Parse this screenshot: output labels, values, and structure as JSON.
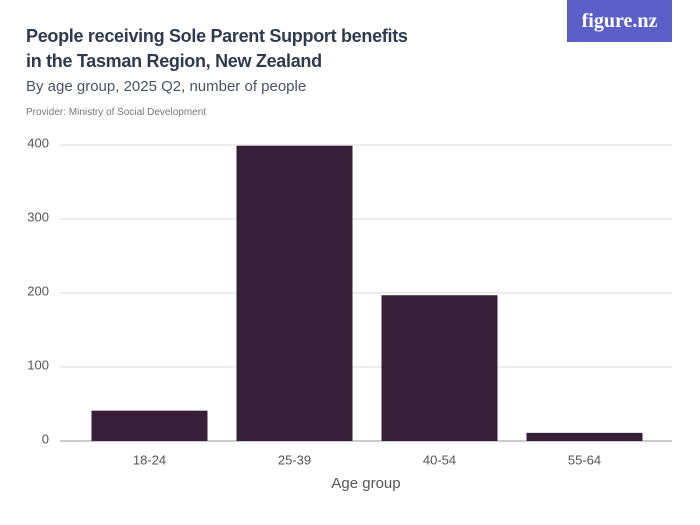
{
  "logo": "figure.nz",
  "chart_data": {
    "type": "bar",
    "title": "People receiving Sole Parent Support benefits in the Tasman Region, New Zealand",
    "subtitle": "By age group, 2025 Q2, number of people",
    "provider": "Provider: Ministry of Social Development",
    "x_label": "Age group",
    "categories": [
      "18-24",
      "25-39",
      "40-54",
      "55-64"
    ],
    "values": [
      41,
      399,
      197,
      11
    ],
    "color": "#371f3a",
    "ylim": [
      0,
      400
    ],
    "yticks": [
      0,
      100,
      200,
      300,
      400
    ],
    "grid": true
  }
}
